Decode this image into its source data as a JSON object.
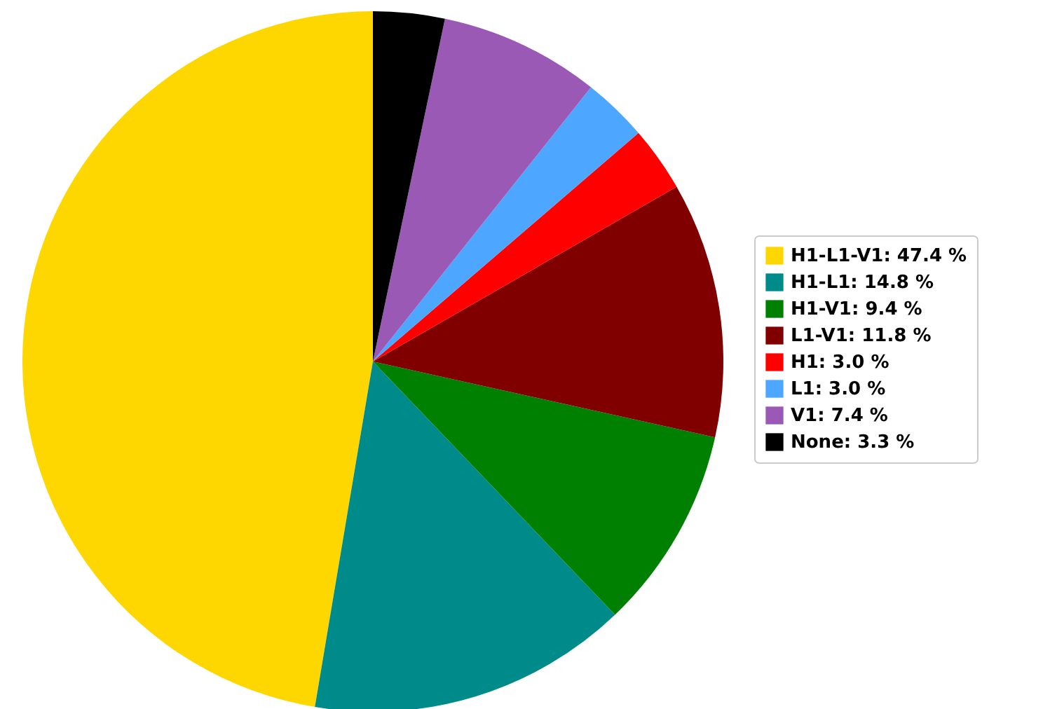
{
  "chart_data": {
    "type": "pie",
    "categories": [
      "H1-L1-V1: 47.4 %",
      "H1-L1: 14.8 %",
      "H1-V1: 9.4 %",
      "L1-V1: 11.8 %",
      "H1: 3.0 %",
      "L1: 3.0 %",
      "V1: 7.4 %",
      "None: 3.3 %"
    ],
    "values": [
      47.4,
      14.8,
      9.4,
      11.8,
      3.0,
      3.0,
      7.4,
      3.3
    ],
    "colors": [
      "#ffd700",
      "#008b8b",
      "#008000",
      "#800000",
      "#ff0000",
      "#4da6ff",
      "#9b59b6",
      "#000000"
    ],
    "legend": "right"
  }
}
